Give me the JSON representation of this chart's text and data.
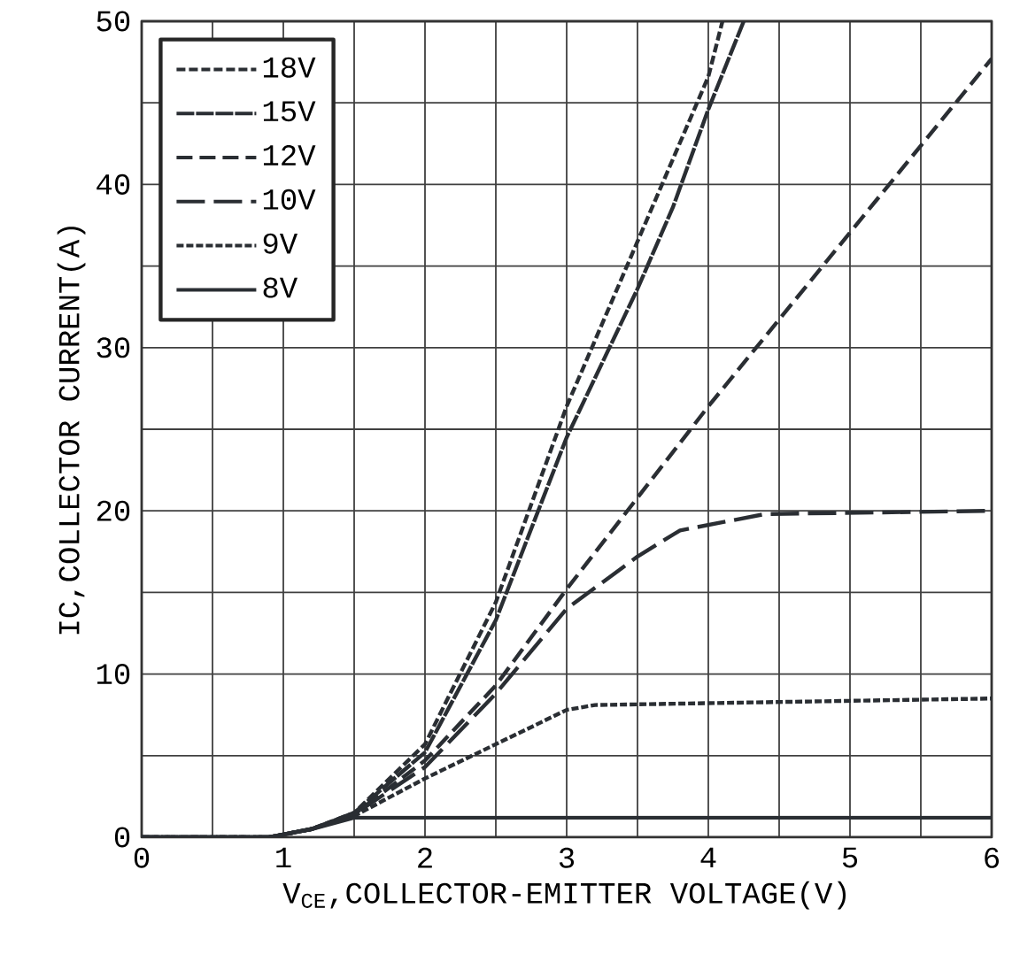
{
  "chart_data": {
    "type": "line",
    "xlabel": "V$_{CE}$,COLLECTOR-EMITTER VOLTAGE(V)",
    "ylabel": "IC,COLLECTOR CURRENT(A)",
    "xlim": [
      0,
      6
    ],
    "ylim": [
      0,
      50
    ],
    "xticks": [
      0,
      {
        "value": 0.5,
        "label": null
      },
      1,
      {
        "value": 1.5,
        "label": null
      },
      2,
      {
        "value": 2.5,
        "label": null
      },
      3,
      {
        "value": 3.5,
        "label": null
      },
      4,
      {
        "value": 4.5,
        "label": null
      },
      5,
      {
        "value": 5.5,
        "label": null
      },
      6
    ],
    "yticks": [
      0,
      {
        "value": 5,
        "label": null
      },
      10,
      {
        "value": 15,
        "label": null
      },
      20,
      {
        "value": 25,
        "label": null
      },
      30,
      {
        "value": 35,
        "label": null
      },
      40,
      {
        "value": 45,
        "label": null
      },
      50
    ],
    "grid": true,
    "legend": "top left",
    "marker": "none",
    "series": [
      {
        "name": "18V",
        "color": "#2a2e33",
        "line_style": "dashed",
        "x": [
          0,
          0.9,
          1.2,
          1.5,
          2,
          2.5,
          3,
          3.5,
          4,
          4.1
        ],
        "values": [
          0,
          0,
          0.5,
          1.5,
          5.7,
          14.4,
          26.4,
          36.5,
          46.6,
          50
        ]
      },
      {
        "name": "15V",
        "color": "#2a2e33",
        "line_style": "dotted",
        "x": [
          0,
          0.9,
          1.2,
          1.5,
          2,
          2.5,
          3,
          3.5,
          3.75,
          4,
          4.25
        ],
        "values": [
          0,
          0,
          0.5,
          1.5,
          5.2,
          13.3,
          24.5,
          33.6,
          38.6,
          44.6,
          50
        ]
      },
      {
        "name": "12V",
        "color": "#2a2e33",
        "line_style": "dashed",
        "x": [
          0,
          0.9,
          1.2,
          1.5,
          2,
          2.5,
          3,
          4,
          6
        ],
        "values": [
          0,
          0,
          0.5,
          1.4,
          4.7,
          9.3,
          15.2,
          26.4,
          47.7
        ]
      },
      {
        "name": "10V",
        "color": "#2a2e33",
        "line_style": "dashed",
        "x": [
          0,
          0.9,
          1.2,
          1.5,
          2,
          2.5,
          3,
          3.5,
          3.8,
          4.4,
          6
        ],
        "values": [
          0,
          0,
          0.5,
          1.4,
          4.3,
          8.8,
          14,
          17.2,
          18.8,
          19.8,
          20
        ]
      },
      {
        "name": "9V",
        "color": "#2a2e33",
        "line_style": "dashed",
        "x": [
          0,
          0.9,
          1.2,
          1.5,
          2,
          2.5,
          3,
          3.2,
          6
        ],
        "values": [
          0,
          0,
          0.5,
          1.3,
          3.6,
          5.7,
          7.8,
          8.1,
          8.5
        ]
      },
      {
        "name": "8V",
        "color": "#2a2e33",
        "line_style": "solid",
        "x": [
          0,
          0.9,
          1.2,
          1.5,
          6
        ],
        "values": [
          0,
          0,
          0.5,
          1.2,
          1.2
        ]
      }
    ]
  }
}
